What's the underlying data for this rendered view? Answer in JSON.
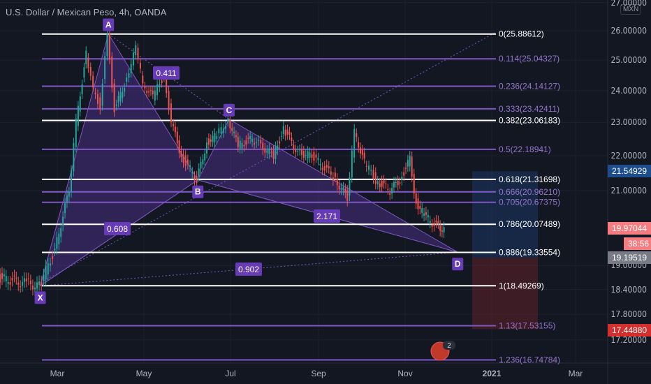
{
  "header": {
    "title": "U.S. Dollar / Mexican Peso, 4h, OANDA",
    "currency": "MXN"
  },
  "chart_data": {
    "type": "candlestick",
    "symbol": "USDMXN",
    "interval": "4h",
    "scale": "log",
    "y_ticks": [
      "27.00000",
      "26.00000",
      "25.00000",
      "24.00000",
      "23.00000",
      "22.00000",
      "21.00000",
      "19.00000",
      "18.40000",
      "17.80000",
      "17.20000"
    ],
    "y_tick_values": [
      27,
      26,
      25,
      24,
      23,
      22,
      21,
      19,
      18.4,
      17.8,
      17.2
    ],
    "x_ticks": [
      {
        "label": "Mar",
        "date": "2020-03-01"
      },
      {
        "label": "May",
        "date": "2020-05-01"
      },
      {
        "label": "Jul",
        "date": "2020-07-01"
      },
      {
        "label": "Sep",
        "date": "2020-09-01"
      },
      {
        "label": "Nov",
        "date": "2020-11-01"
      },
      {
        "label": "2021",
        "date": "2021-01-01"
      },
      {
        "label": "Mar",
        "date": "2021-03-01"
      }
    ],
    "price_path": [
      [
        "2020-01-20",
        18.7
      ],
      [
        "2020-02-09",
        18.55
      ],
      [
        "2020-02-18",
        18.49
      ],
      [
        "2020-02-29",
        19.4
      ],
      [
        "2020-03-10",
        21.0
      ],
      [
        "2020-03-15",
        23.0
      ],
      [
        "2020-03-22",
        25.2
      ],
      [
        "2020-03-27",
        24.0
      ],
      [
        "2020-04-01",
        23.5
      ],
      [
        "2020-04-06",
        25.8
      ],
      [
        "2020-04-11",
        23.4
      ],
      [
        "2020-04-18",
        24.2
      ],
      [
        "2020-04-26",
        25.4
      ],
      [
        "2020-05-01",
        24.2
      ],
      [
        "2020-05-08",
        23.8
      ],
      [
        "2020-05-16",
        24.5
      ],
      [
        "2020-05-21",
        23.0
      ],
      [
        "2020-05-28",
        22.0
      ],
      [
        "2020-06-08",
        21.3
      ],
      [
        "2020-06-15",
        22.4
      ],
      [
        "2020-06-22",
        22.6
      ],
      [
        "2020-06-30",
        23.1
      ],
      [
        "2020-07-07",
        22.3
      ],
      [
        "2020-07-17",
        22.5
      ],
      [
        "2020-08-01",
        22.0
      ],
      [
        "2020-08-08",
        22.8
      ],
      [
        "2020-08-18",
        22.1
      ],
      [
        "2020-08-28",
        22.0
      ],
      [
        "2020-09-12",
        21.4
      ],
      [
        "2020-09-22",
        20.8
      ],
      [
        "2020-09-27",
        22.7
      ],
      [
        "2020-10-04",
        21.8
      ],
      [
        "2020-10-12",
        21.3
      ],
      [
        "2020-10-22",
        21.0
      ],
      [
        "2020-10-29",
        21.3
      ],
      [
        "2020-11-05",
        21.9
      ],
      [
        "2020-11-08",
        20.8
      ],
      [
        "2020-11-15",
        20.3
      ],
      [
        "2020-11-25",
        20.0
      ],
      [
        "2020-11-29",
        19.97
      ]
    ],
    "fib_levels": [
      {
        "label": "0(25.88612)",
        "price": 25.88612,
        "white": true
      },
      {
        "label": "0.114(25.04327)",
        "price": 25.04327,
        "white": false
      },
      {
        "label": "0.236(24.14127)",
        "price": 24.14127,
        "white": false
      },
      {
        "label": "0.333(23.42411)",
        "price": 23.42411,
        "white": false
      },
      {
        "label": "0.382(23.06183)",
        "price": 23.06183,
        "white": true
      },
      {
        "label": "0.5(22.18941)",
        "price": 22.18941,
        "white": false
      },
      {
        "label": "0.618(21.31698)",
        "price": 21.31698,
        "white": true
      },
      {
        "label": "0.666(20.96210)",
        "price": 20.9621,
        "white": false
      },
      {
        "label": "0.705(20.67375)",
        "price": 20.67375,
        "white": false
      },
      {
        "label": "0.786(20.07489)",
        "price": 20.07489,
        "white": true
      },
      {
        "label": "0.886(19.33554)",
        "price": 19.33554,
        "white": true
      },
      {
        "label": "1(18.49269)",
        "price": 18.49269,
        "white": true
      },
      {
        "label": "1.13(17.53155)",
        "price": 17.53155,
        "white": false
      },
      {
        "label": "1.236(16.74784)",
        "price": 16.74784,
        "white": false
      }
    ],
    "pattern": {
      "points": [
        {
          "label": "X",
          "date": "2020-02-18",
          "price": 18.49
        },
        {
          "label": "A",
          "date": "2020-04-06",
          "price": 25.89
        },
        {
          "label": "B",
          "date": "2020-06-08",
          "price": 21.3
        },
        {
          "label": "C",
          "date": "2020-06-30",
          "price": 23.1
        },
        {
          "label": "D",
          "date": "2020-12-08",
          "price": 19.34
        }
      ],
      "ratios": [
        "0.411",
        "0.608",
        "2.171",
        "0.902"
      ]
    },
    "position": {
      "entry": 19.19519,
      "target": 21.54929,
      "stop": 17.4488
    },
    "price_tags": {
      "target": "21.54929",
      "last": "19.97044",
      "countdown": "38:56",
      "entry": "19.19519",
      "stop": "17.44880"
    },
    "event_badge": "2"
  },
  "colors": {
    "bg": "#131722",
    "fib": "#7e57c2",
    "pattern": "#673ab7",
    "up": "#26a69a",
    "down": "#ef5350",
    "target": "#1e4d8c",
    "last": "#f77c80",
    "stop": "#e53935"
  }
}
